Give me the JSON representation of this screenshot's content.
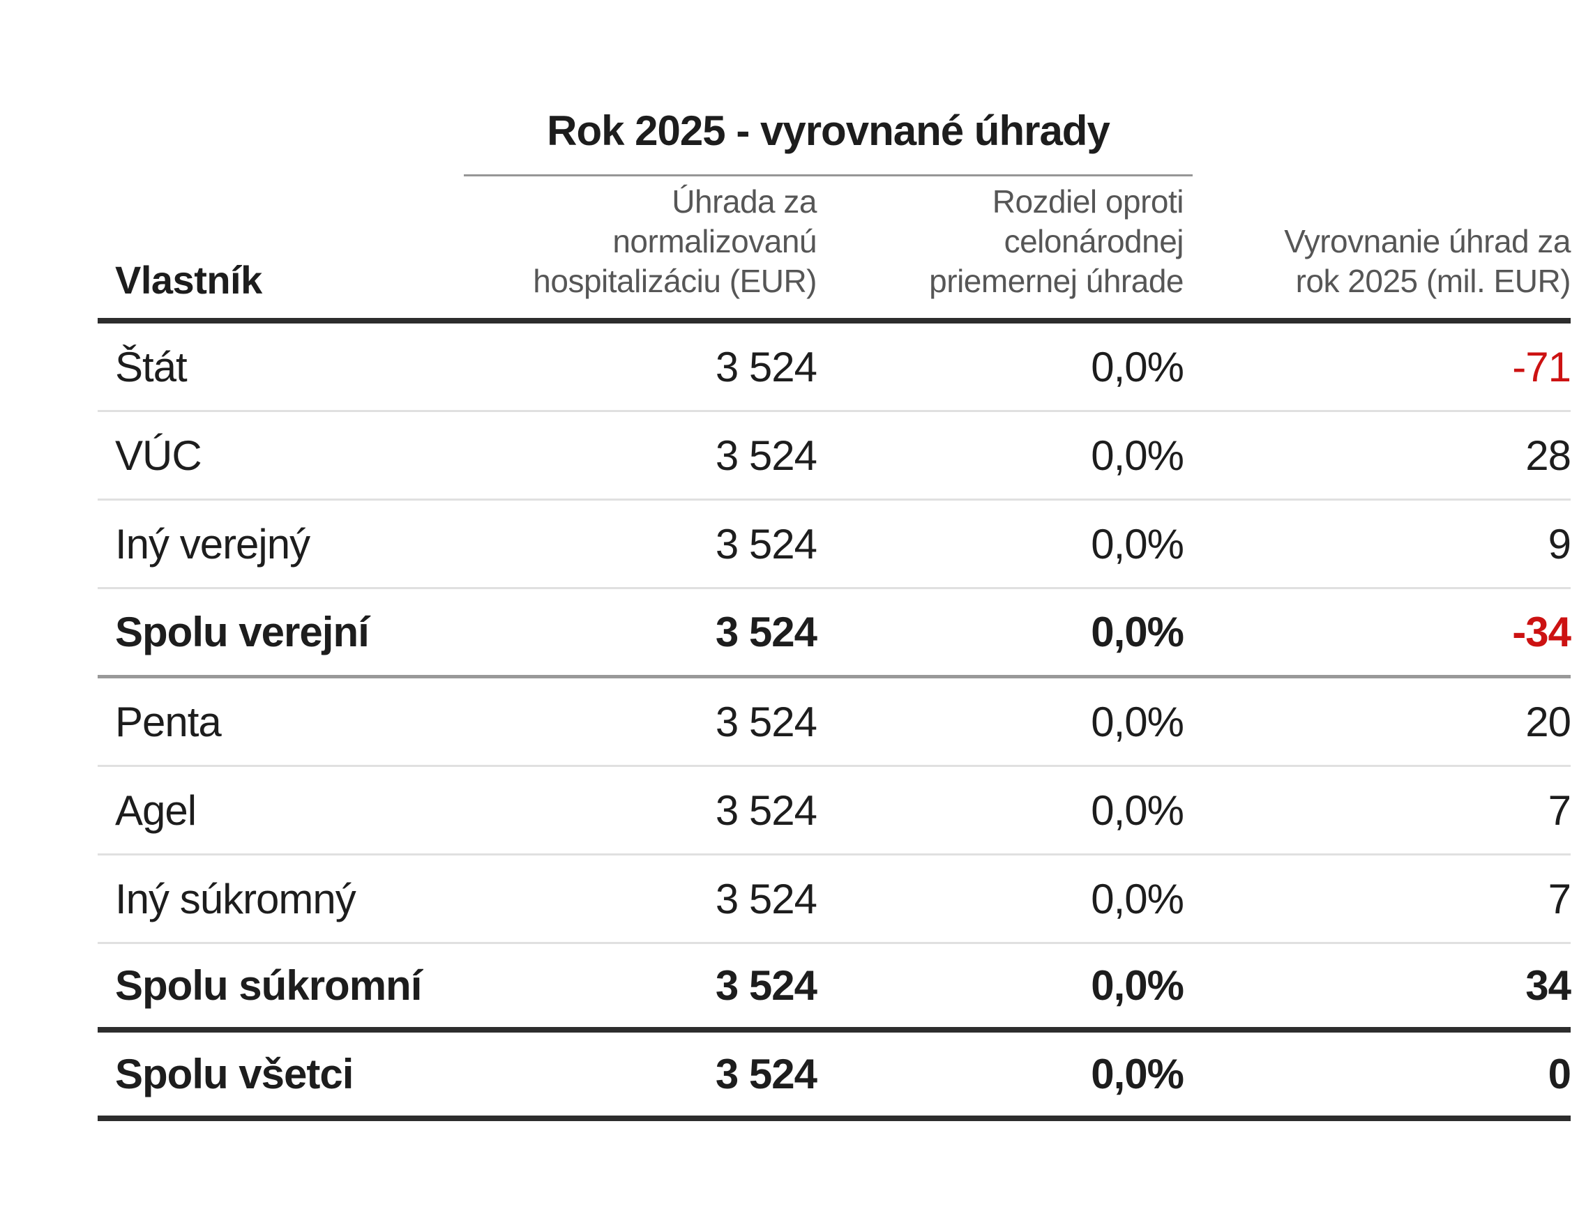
{
  "chart_data": {
    "type": "table",
    "title": "Rok 2025 - vyrovnané úhrady",
    "columns": [
      {
        "key": "owner",
        "label": "Vlastník",
        "label_lines": [
          "Vlastník"
        ],
        "align": "left"
      },
      {
        "key": "payment",
        "label": "Úhrada za normalizovanú hospitalizáciu (EUR)",
        "label_lines": [
          "Úhrada za",
          "normalizovanú",
          "hospitalizáciu (EUR)"
        ],
        "align": "right"
      },
      {
        "key": "diff",
        "label": "Rozdiel oproti celonárodnej priemernej úhrade",
        "label_lines": [
          "Rozdiel oproti",
          "celonárodnej",
          "priemernej úhrade"
        ],
        "align": "right"
      },
      {
        "key": "settlement",
        "label": "Vyrovnanie úhrad za rok 2025 (mil. EUR)",
        "label_lines": [
          "Vyrovnanie úhrad za",
          "rok 2025 (mil. EUR)"
        ],
        "align": "right"
      }
    ],
    "rows": [
      {
        "owner": "Štát",
        "payment": "3 524",
        "payment_value": 3524,
        "diff": "0,0%",
        "diff_pct": 0.0,
        "settlement": "-71",
        "settlement_value": -71,
        "emphasis": false,
        "negative": true,
        "divider_after": "thin"
      },
      {
        "owner": "VÚC",
        "payment": "3 524",
        "payment_value": 3524,
        "diff": "0,0%",
        "diff_pct": 0.0,
        "settlement": "28",
        "settlement_value": 28,
        "emphasis": false,
        "negative": false,
        "divider_after": "thin"
      },
      {
        "owner": "Iný verejný",
        "payment": "3 524",
        "payment_value": 3524,
        "diff": "0,0%",
        "diff_pct": 0.0,
        "settlement": "9",
        "settlement_value": 9,
        "emphasis": false,
        "negative": false,
        "divider_after": "thin"
      },
      {
        "owner": "Spolu verejní",
        "payment": "3 524",
        "payment_value": 3524,
        "diff": "0,0%",
        "diff_pct": 0.0,
        "settlement": "-34",
        "settlement_value": -34,
        "emphasis": true,
        "negative": true,
        "divider_after": "medium"
      },
      {
        "owner": "Penta",
        "payment": "3 524",
        "payment_value": 3524,
        "diff": "0,0%",
        "diff_pct": 0.0,
        "settlement": "20",
        "settlement_value": 20,
        "emphasis": false,
        "negative": false,
        "divider_after": "thin"
      },
      {
        "owner": "Agel",
        "payment": "3 524",
        "payment_value": 3524,
        "diff": "0,0%",
        "diff_pct": 0.0,
        "settlement": "7",
        "settlement_value": 7,
        "emphasis": false,
        "negative": false,
        "divider_after": "thin"
      },
      {
        "owner": "Iný súkromný",
        "payment": "3 524",
        "payment_value": 3524,
        "diff": "0,0%",
        "diff_pct": 0.0,
        "settlement": "7",
        "settlement_value": 7,
        "emphasis": false,
        "negative": false,
        "divider_after": "thin"
      },
      {
        "owner": "Spolu súkromní",
        "payment": "3 524",
        "payment_value": 3524,
        "diff": "0,0%",
        "diff_pct": 0.0,
        "settlement": "34",
        "settlement_value": 34,
        "emphasis": true,
        "negative": false,
        "divider_after": "thick"
      },
      {
        "owner": "Spolu všetci",
        "payment": "3 524",
        "payment_value": 3524,
        "diff": "0,0%",
        "diff_pct": 0.0,
        "settlement": "0",
        "settlement_value": 0,
        "emphasis": true,
        "negative": false,
        "divider_after": "thick"
      }
    ],
    "colors": {
      "negative": "#cc1212",
      "text": "#1d1d1d",
      "header_text": "#565656",
      "rule_dark": "#2d2d2d",
      "rule_medium": "#999999",
      "rule_medium_light": "#969696",
      "rule_light": "#e0e0e0"
    },
    "layout_hints": {
      "grid": "horizontal-rules-only",
      "legend": "none"
    }
  }
}
